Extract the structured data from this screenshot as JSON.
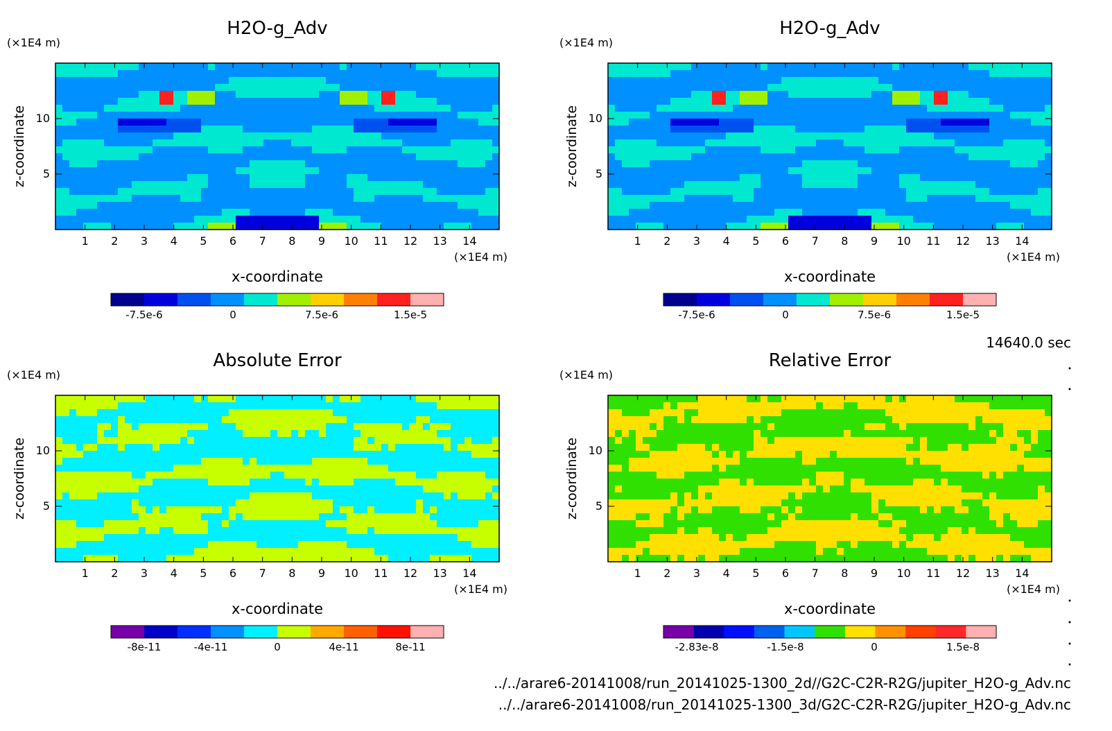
{
  "time_label": "14640.0 sec",
  "file_paths": [
    "../../arare6-20141008/run_20141025-1300_2d//G2C-C2R-R2G/jupiter_H2O-g_Adv.nc",
    "../../arare6-20141008/run_20141025-1300_3d/G2C-C2R-R2G/jupiter_H2O-g_Adv.nc"
  ],
  "chart_data": [
    {
      "type": "heatmap",
      "title": "H2O-g_Adv",
      "xlabel": "x-coordinate",
      "ylabel": "z-coordinate",
      "x_unit": "(×1E4 m)",
      "z_unit": "(×1E4 m)",
      "xlim": [
        0,
        15
      ],
      "ylim": [
        0,
        15
      ],
      "x_ticks": [
        "1",
        "2",
        "3",
        "4",
        "5",
        "6",
        "7",
        "8",
        "9",
        "10",
        "11",
        "12",
        "13",
        "14"
      ],
      "z_ticks": [
        "5",
        "10"
      ],
      "colorbar": {
        "colors": [
          "#00008f",
          "#0000df",
          "#0050f0",
          "#0090ff",
          "#00e8d0",
          "#a0f000",
          "#ffd000",
          "#ff8000",
          "#ff2020",
          "#ffb0b0"
        ],
        "tick_labels": [
          "-7.5e-6",
          "0",
          "7.5e-6",
          "1.5e-5"
        ]
      },
      "pattern": "field"
    },
    {
      "type": "heatmap",
      "title": "H2O-g_Adv",
      "xlabel": "x-coordinate",
      "ylabel": "z-coordinate",
      "x_unit": "(×1E4 m)",
      "z_unit": "(×1E4 m)",
      "xlim": [
        0,
        15
      ],
      "ylim": [
        0,
        15
      ],
      "x_ticks": [
        "1",
        "2",
        "3",
        "4",
        "5",
        "6",
        "7",
        "8",
        "9",
        "10",
        "11",
        "12",
        "13",
        "14"
      ],
      "z_ticks": [
        "5",
        "10"
      ],
      "colorbar": {
        "colors": [
          "#00008f",
          "#0000df",
          "#0050f0",
          "#0090ff",
          "#00e8d0",
          "#a0f000",
          "#ffd000",
          "#ff8000",
          "#ff2020",
          "#ffb0b0"
        ],
        "tick_labels": [
          "-7.5e-6",
          "0",
          "7.5e-6",
          "1.5e-5"
        ]
      },
      "pattern": "field"
    },
    {
      "type": "heatmap",
      "title": "Absolute Error",
      "xlabel": "x-coordinate",
      "ylabel": "z-coordinate",
      "x_unit": "(×1E4 m)",
      "z_unit": "(×1E4 m)",
      "xlim": [
        0,
        15
      ],
      "ylim": [
        0,
        15
      ],
      "x_ticks": [
        "1",
        "2",
        "3",
        "4",
        "5",
        "6",
        "7",
        "8",
        "9",
        "10",
        "11",
        "12",
        "13",
        "14"
      ],
      "z_ticks": [
        "5",
        "10"
      ],
      "colorbar": {
        "colors": [
          "#7800a8",
          "#0000c8",
          "#0030ff",
          "#0090ff",
          "#00f0ff",
          "#c8ff00",
          "#ffa800",
          "#ff6000",
          "#ff1000",
          "#ffb0b0"
        ],
        "tick_labels": [
          "-8e-11",
          "-4e-11",
          "0",
          "4e-11",
          "8e-11"
        ]
      },
      "pattern": "abs"
    },
    {
      "type": "heatmap",
      "title": "Relative Error",
      "xlabel": "x-coordinate",
      "ylabel": "z-coordinate",
      "x_unit": "(×1E4 m)",
      "z_unit": "(×1E4 m)",
      "xlim": [
        0,
        15
      ],
      "ylim": [
        0,
        15
      ],
      "x_ticks": [
        "1",
        "2",
        "3",
        "4",
        "5",
        "6",
        "7",
        "8",
        "9",
        "10",
        "11",
        "12",
        "13",
        "14"
      ],
      "z_ticks": [
        "5",
        "10"
      ],
      "colorbar": {
        "colors": [
          "#7800a8",
          "#0000b0",
          "#0010ff",
          "#0060f0",
          "#00c8ff",
          "#30e000",
          "#ffe000",
          "#ff9000",
          "#ff4000",
          "#ff2828",
          "#ffb0b0"
        ],
        "tick_labels": [
          "-2.83e-8",
          "-1.5e-8",
          "0",
          "1.5e-8"
        ]
      },
      "pattern": "rel"
    }
  ]
}
